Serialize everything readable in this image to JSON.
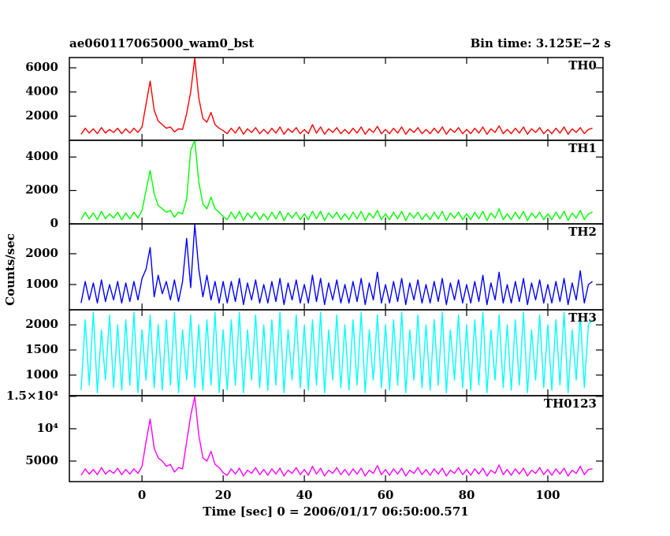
{
  "chart_data": {
    "type": "line",
    "title": "ae060117065000_wam0_bst",
    "subtitle": "Bin time: 3.125E−2 s",
    "xlabel": "Time [sec] 0 = 2006/01/17 06:50:00.571",
    "ylabel": "Counts/sec",
    "xlim": [
      -17.9,
      113.6
    ],
    "xticks": [
      0,
      20,
      40,
      60,
      80,
      100
    ],
    "x": [
      -15,
      -14,
      -13,
      -12,
      -11,
      -10,
      -9,
      -8,
      -7,
      -6,
      -5,
      -4,
      -3,
      -2,
      -1,
      0,
      1,
      2,
      3,
      4,
      5,
      6,
      7,
      8,
      9,
      10,
      11,
      12,
      13,
      14,
      15,
      16,
      17,
      18,
      19,
      20,
      21,
      22,
      23,
      24,
      25,
      26,
      27,
      28,
      29,
      30,
      31,
      32,
      33,
      34,
      35,
      36,
      37,
      38,
      39,
      40,
      41,
      42,
      43,
      44,
      45,
      46,
      47,
      48,
      49,
      50,
      51,
      52,
      53,
      54,
      55,
      56,
      57,
      58,
      59,
      60,
      61,
      62,
      63,
      64,
      65,
      66,
      67,
      68,
      69,
      70,
      71,
      72,
      73,
      74,
      75,
      76,
      77,
      78,
      79,
      80,
      81,
      82,
      83,
      84,
      85,
      86,
      87,
      88,
      89,
      90,
      91,
      92,
      93,
      94,
      95,
      96,
      97,
      98,
      99,
      100,
      101,
      102,
      103,
      104,
      105,
      106,
      107,
      108,
      109,
      110,
      111
    ],
    "series": [
      {
        "name": "TH0",
        "color": "#ff0000",
        "ylim": [
          0,
          6850
        ],
        "yticks": [
          2000,
          4000,
          6000
        ],
        "values": [
          500,
          1000,
          600,
          950,
          550,
          1050,
          600,
          900,
          650,
          1000,
          550,
          950,
          600,
          1000,
          650,
          1100,
          3000,
          4900,
          2500,
          1600,
          1300,
          1000,
          1100,
          700,
          950,
          900,
          2200,
          4000,
          6800,
          3500,
          1800,
          1500,
          2300,
          1300,
          1000,
          800,
          550,
          1000,
          600,
          1100,
          500,
          950,
          650,
          1050,
          550,
          900,
          550,
          1000,
          600,
          1100,
          500,
          950,
          650,
          1050,
          550,
          900,
          550,
          1300,
          600,
          1100,
          500,
          950,
          650,
          1050,
          550,
          900,
          550,
          1000,
          600,
          1100,
          500,
          950,
          650,
          1150,
          550,
          900,
          550,
          1000,
          600,
          1100,
          500,
          950,
          650,
          1050,
          550,
          900,
          550,
          1000,
          600,
          1100,
          500,
          950,
          650,
          1050,
          550,
          900,
          550,
          1000,
          600,
          1100,
          500,
          950,
          650,
          1200,
          550,
          900,
          550,
          1000,
          600,
          1100,
          500,
          950,
          650,
          1050,
          550,
          900,
          550,
          1000,
          600,
          1100,
          500,
          950,
          650,
          1050,
          550,
          900,
          1000
        ]
      },
      {
        "name": "TH1",
        "color": "#00ff00",
        "ylim": [
          0,
          5000
        ],
        "yticks": [
          0,
          2000,
          4000
        ],
        "values": [
          250,
          700,
          300,
          650,
          250,
          750,
          300,
          600,
          350,
          700,
          250,
          650,
          300,
          700,
          350,
          800,
          2000,
          3200,
          1800,
          1100,
          900,
          700,
          800,
          400,
          700,
          600,
          1500,
          4400,
          5000,
          2500,
          1200,
          900,
          1600,
          900,
          700,
          450,
          250,
          700,
          300,
          750,
          200,
          650,
          350,
          700,
          250,
          600,
          250,
          700,
          300,
          750,
          200,
          650,
          350,
          700,
          250,
          600,
          250,
          750,
          300,
          750,
          200,
          650,
          350,
          700,
          250,
          600,
          250,
          700,
          300,
          750,
          200,
          650,
          350,
          800,
          250,
          600,
          250,
          700,
          300,
          750,
          200,
          650,
          350,
          700,
          250,
          600,
          250,
          700,
          300,
          750,
          200,
          650,
          350,
          700,
          250,
          600,
          250,
          700,
          300,
          750,
          200,
          650,
          350,
          900,
          250,
          600,
          250,
          700,
          300,
          750,
          200,
          650,
          350,
          700,
          250,
          600,
          250,
          700,
          300,
          750,
          200,
          650,
          350,
          800,
          250,
          600,
          700
        ]
      },
      {
        "name": "TH2",
        "color": "#0000ff",
        "ylim": [
          180,
          2970
        ],
        "yticks": [
          1000,
          2000
        ],
        "values": [
          400,
          1100,
          500,
          1050,
          400,
          1150,
          450,
          1000,
          500,
          1100,
          400,
          1050,
          450,
          1100,
          500,
          1200,
          1500,
          2200,
          600,
          1300,
          700,
          1100,
          500,
          1150,
          450,
          1100,
          2500,
          900,
          2950,
          1500,
          600,
          1300,
          500,
          1100,
          400,
          1100,
          400,
          1100,
          450,
          1200,
          350,
          1050,
          500,
          1150,
          400,
          1000,
          400,
          1100,
          450,
          1200,
          350,
          1050,
          500,
          1150,
          400,
          1000,
          400,
          1300,
          450,
          1200,
          350,
          1050,
          500,
          1150,
          400,
          1000,
          400,
          1100,
          450,
          1200,
          350,
          1050,
          500,
          1400,
          400,
          1000,
          400,
          1100,
          450,
          1200,
          350,
          1050,
          500,
          1150,
          400,
          1000,
          400,
          1100,
          450,
          1200,
          350,
          1050,
          500,
          1150,
          400,
          1000,
          400,
          1100,
          450,
          1300,
          350,
          1050,
          500,
          1400,
          400,
          1000,
          400,
          1100,
          450,
          1200,
          350,
          1050,
          500,
          1150,
          400,
          1000,
          400,
          1100,
          450,
          1200,
          350,
          1050,
          500,
          1450,
          400,
          1000,
          1100
        ]
      },
      {
        "name": "TH3",
        "color": "#00ffff",
        "ylim": [
          590,
          2300
        ],
        "yticks": [
          1000,
          1500,
          2000
        ],
        "values": [
          700,
          2100,
          800,
          2250,
          650,
          1900,
          900,
          2200,
          750,
          2000,
          700,
          2100,
          800,
          2250,
          650,
          1900,
          900,
          2200,
          750,
          2000,
          700,
          2100,
          800,
          2250,
          650,
          1900,
          900,
          2200,
          750,
          2000,
          700,
          2100,
          800,
          2250,
          650,
          1900,
          700,
          2100,
          800,
          2250,
          650,
          1900,
          900,
          2200,
          750,
          2000,
          700,
          2100,
          800,
          2250,
          650,
          1900,
          900,
          2200,
          750,
          2000,
          700,
          2100,
          800,
          2250,
          650,
          1900,
          900,
          2200,
          750,
          2000,
          700,
          2100,
          800,
          2250,
          650,
          1900,
          900,
          2200,
          750,
          2000,
          700,
          2100,
          800,
          2250,
          650,
          1900,
          900,
          2200,
          750,
          2000,
          700,
          2100,
          800,
          2250,
          650,
          1900,
          900,
          2200,
          750,
          2000,
          700,
          2100,
          800,
          2250,
          650,
          1900,
          900,
          2200,
          750,
          2000,
          700,
          2100,
          800,
          2250,
          650,
          1900,
          900,
          2200,
          750,
          2000,
          700,
          2100,
          800,
          2250,
          650,
          1900,
          900,
          2200,
          750,
          2000,
          2100
        ]
      },
      {
        "name": "TH0123",
        "color": "#ff00ff",
        "ylim": [
          1830,
          15100
        ],
        "yticks": [
          5000,
          {
            "value": 10000,
            "label": "10⁴"
          },
          {
            "value": 15000,
            "label": "1.5×10⁴"
          }
        ],
        "values": [
          2800,
          3800,
          3000,
          3700,
          2900,
          4000,
          3000,
          3600,
          3100,
          3900,
          2900,
          3700,
          3000,
          3800,
          3100,
          4200,
          8000,
          11500,
          7000,
          5500,
          5000,
          4200,
          4500,
          3300,
          4000,
          3800,
          8000,
          12000,
          15000,
          9000,
          5500,
          5000,
          6500,
          4500,
          4000,
          3200,
          2800,
          3800,
          3000,
          3900,
          2700,
          3600,
          3100,
          4000,
          2900,
          3700,
          2800,
          3800,
          3000,
          3900,
          2700,
          3600,
          3100,
          4000,
          2900,
          3700,
          2800,
          4200,
          3000,
          3900,
          2700,
          3600,
          3100,
          4000,
          2900,
          3700,
          2800,
          3800,
          3000,
          3900,
          2700,
          3600,
          3100,
          4300,
          2900,
          3700,
          2800,
          3800,
          3000,
          3900,
          2700,
          3600,
          3100,
          4000,
          2900,
          3700,
          2800,
          3800,
          3000,
          3900,
          2700,
          3600,
          3100,
          4000,
          2900,
          3700,
          2800,
          3800,
          3000,
          3900,
          2700,
          3600,
          3100,
          4400,
          2900,
          3700,
          2800,
          3800,
          3000,
          3900,
          2700,
          3600,
          3100,
          4000,
          2900,
          3700,
          2800,
          3800,
          3000,
          3900,
          2700,
          3600,
          3100,
          4200,
          2900,
          3700,
          3800
        ]
      }
    ]
  }
}
